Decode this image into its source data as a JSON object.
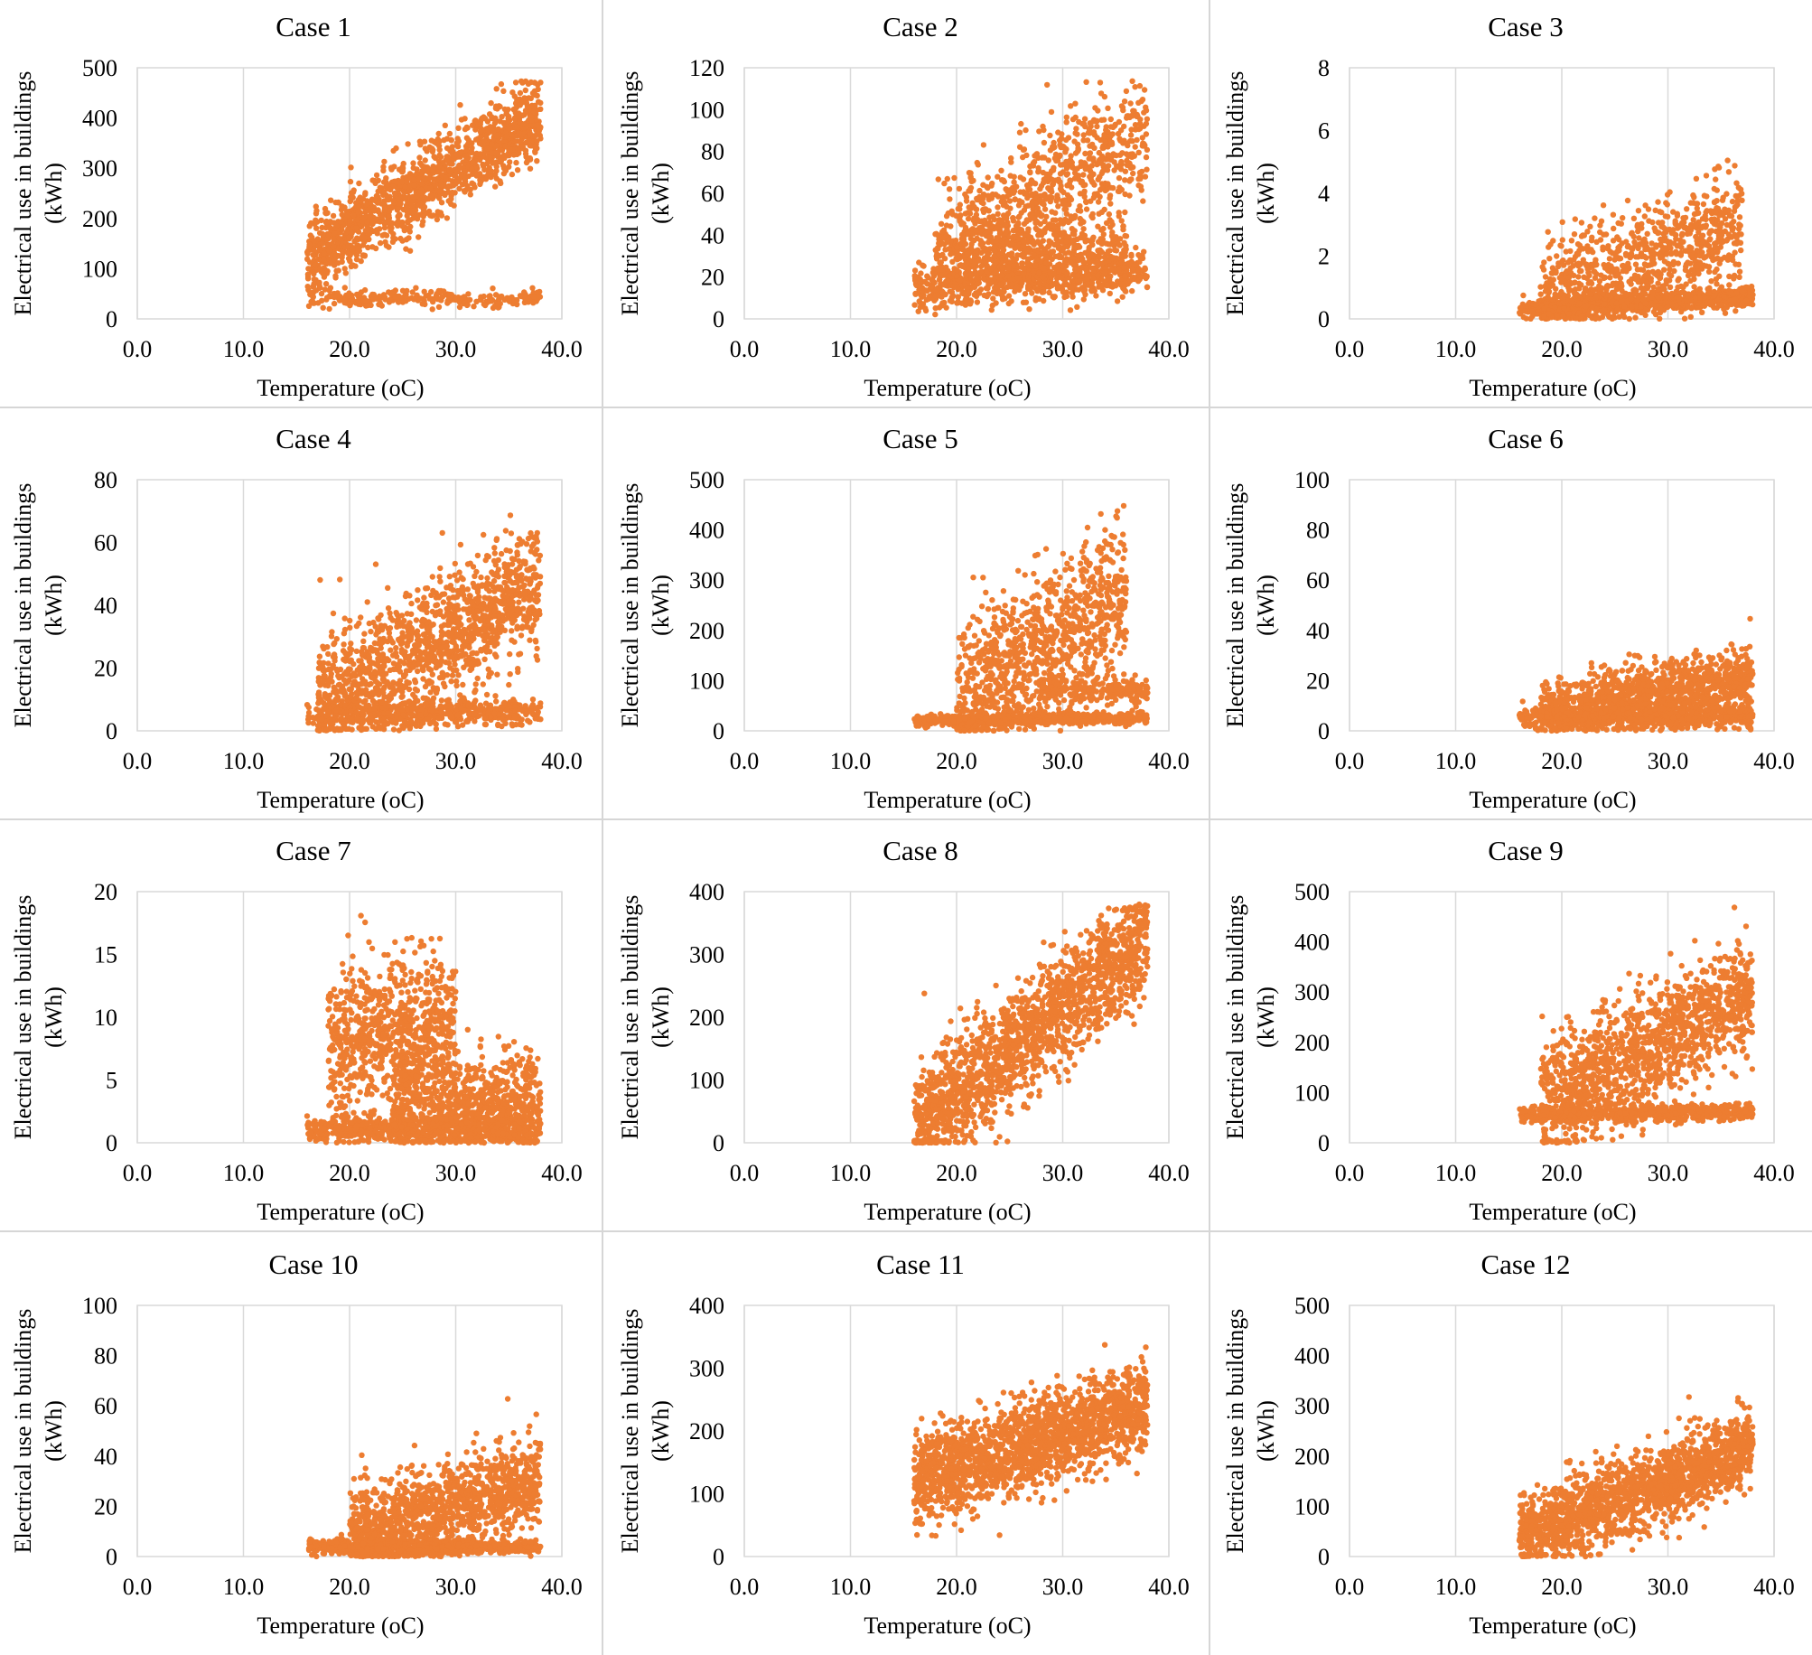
{
  "figure": {
    "xlabel": "Temperature (oC)",
    "ylabel_line1": "Electrical use in buildings",
    "ylabel_line2": "(kWh)",
    "point_color": "#ED7D31",
    "grid_color": "#D9D9D9",
    "x_ticks": [
      "0.0",
      "10.0",
      "20.0",
      "30.0",
      "40.0"
    ]
  },
  "chart_data": [
    {
      "type": "scatter",
      "title": "Case 1",
      "xlabel": "Temperature (oC)",
      "ylabel": "Electrical use in buildings (kWh)",
      "xlim": [
        0,
        40
      ],
      "ylim": [
        0,
        500
      ],
      "y_ticks": [
        "0",
        "100",
        "200",
        "300",
        "400",
        "500"
      ],
      "clusters": [
        {
          "x": [
            16,
            38
          ],
          "y0": 40,
          "slope": 0,
          "spread": 8,
          "n": 260
        },
        {
          "x": [
            16,
            38
          ],
          "y0": 120,
          "slope": 13,
          "spread": 40,
          "n": 1400
        }
      ]
    },
    {
      "type": "scatter",
      "title": "Case 2",
      "xlabel": "Temperature (oC)",
      "ylabel": "Electrical use in buildings (kWh)",
      "xlim": [
        0,
        40
      ],
      "ylim": [
        0,
        120
      ],
      "y_ticks": [
        "0",
        "20",
        "40",
        "60",
        "80",
        "100",
        "120"
      ],
      "clusters": [
        {
          "x": [
            16,
            38
          ],
          "y0": 15,
          "slope": 0.4,
          "spread": 5,
          "n": 700
        },
        {
          "x": [
            18,
            38
          ],
          "y0": 30,
          "slope": 3.0,
          "spread": 15,
          "n": 900
        },
        {
          "x": [
            20,
            36
          ],
          "y0": 30,
          "slope": 0.2,
          "spread": 10,
          "n": 500
        }
      ]
    },
    {
      "type": "scatter",
      "title": "Case 3",
      "xlabel": "Temperature (oC)",
      "ylabel": "Electrical use in buildings (kWh)",
      "xlim": [
        0,
        40
      ],
      "ylim": [
        0,
        8
      ],
      "y_ticks": [
        "0",
        "2",
        "4",
        "6",
        "8"
      ],
      "clusters": [
        {
          "x": [
            16,
            38
          ],
          "y0": 0.3,
          "slope": 0.02,
          "spread": 0.15,
          "n": 900
        },
        {
          "x": [
            18,
            37
          ],
          "y0": 0.6,
          "slope": 0.12,
          "spread": 0.9,
          "n": 900
        }
      ]
    },
    {
      "type": "scatter",
      "title": "Case 4",
      "xlabel": "Temperature (oC)",
      "ylabel": "Electrical use in buildings (kWh)",
      "xlim": [
        0,
        40
      ],
      "ylim": [
        0,
        80
      ],
      "y_ticks": [
        "0",
        "20",
        "40",
        "60",
        "80"
      ],
      "clusters": [
        {
          "x": [
            16,
            38
          ],
          "y0": 5,
          "slope": 0.05,
          "spread": 2,
          "n": 500
        },
        {
          "x": [
            17,
            38
          ],
          "y0": 10,
          "slope": 1.7,
          "spread": 10,
          "n": 1300
        }
      ]
    },
    {
      "type": "scatter",
      "title": "Case 5",
      "xlabel": "Temperature (oC)",
      "ylabel": "Electrical use in buildings (kWh)",
      "xlim": [
        0,
        40
      ],
      "ylim": [
        0,
        500
      ],
      "y_ticks": [
        "0",
        "100",
        "200",
        "300",
        "400",
        "500"
      ],
      "clusters": [
        {
          "x": [
            16,
            38
          ],
          "y0": 20,
          "slope": 0.3,
          "spread": 6,
          "n": 700
        },
        {
          "x": [
            20,
            36
          ],
          "y0": 60,
          "slope": 14,
          "spread": 70,
          "n": 1000
        },
        {
          "x": [
            28,
            38
          ],
          "y0": 80,
          "slope": 0,
          "spread": 12,
          "n": 200
        }
      ]
    },
    {
      "type": "scatter",
      "title": "Case 6",
      "xlabel": "Temperature (oC)",
      "ylabel": "Electrical use in buildings (kWh)",
      "xlim": [
        0,
        40
      ],
      "ylim": [
        0,
        100
      ],
      "y_ticks": [
        "0",
        "20",
        "40",
        "60",
        "80",
        "100"
      ],
      "clusters": [
        {
          "x": [
            16,
            38
          ],
          "y0": 5,
          "slope": 0.05,
          "spread": 2,
          "n": 700
        },
        {
          "x": [
            18,
            38
          ],
          "y0": 8,
          "slope": 0.6,
          "spread": 6,
          "n": 1200
        }
      ]
    },
    {
      "type": "scatter",
      "title": "Case 7",
      "xlabel": "Temperature (oC)",
      "ylabel": "Electrical use in buildings (kWh)",
      "xlim": [
        0,
        40
      ],
      "ylim": [
        0,
        20
      ],
      "y_ticks": [
        "0",
        "5",
        "10",
        "15",
        "20"
      ],
      "clusters": [
        {
          "x": [
            16,
            38
          ],
          "y0": 1.0,
          "slope": 0,
          "spread": 0.5,
          "n": 600
        },
        {
          "x": [
            18,
            30
          ],
          "y0": 8,
          "slope": 0.1,
          "spread": 3.0,
          "n": 800
        },
        {
          "x": [
            24,
            38
          ],
          "y0": 3,
          "slope": 0,
          "spread": 2.0,
          "n": 800
        }
      ]
    },
    {
      "type": "scatter",
      "title": "Case 8",
      "xlabel": "Temperature (oC)",
      "ylabel": "Electrical use in buildings (kWh)",
      "xlim": [
        0,
        40
      ],
      "ylim": [
        0,
        400
      ],
      "y_ticks": [
        "0",
        "100",
        "200",
        "300",
        "400"
      ],
      "clusters": [
        {
          "x": [
            16,
            38
          ],
          "y0": 20,
          "slope": 14,
          "spread": 45,
          "n": 1700
        }
      ]
    },
    {
      "type": "scatter",
      "title": "Case 9",
      "xlabel": "Temperature (oC)",
      "ylabel": "Electrical use in buildings (kWh)",
      "xlim": [
        0,
        40
      ],
      "ylim": [
        0,
        500
      ],
      "y_ticks": [
        "0",
        "100",
        "200",
        "300",
        "400",
        "500"
      ],
      "clusters": [
        {
          "x": [
            16,
            38
          ],
          "y0": 55,
          "slope": 0.3,
          "spread": 8,
          "n": 600
        },
        {
          "x": [
            18,
            38
          ],
          "y0": 80,
          "slope": 11,
          "spread": 60,
          "n": 1300
        }
      ]
    },
    {
      "type": "scatter",
      "title": "Case 10",
      "xlabel": "Temperature (oC)",
      "ylabel": "Electrical use in buildings (kWh)",
      "xlim": [
        0,
        40
      ],
      "ylim": [
        0,
        100
      ],
      "y_ticks": [
        "0",
        "20",
        "40",
        "60",
        "80",
        "100"
      ],
      "clusters": [
        {
          "x": [
            16,
            38
          ],
          "y0": 4,
          "slope": 0,
          "spread": 1.5,
          "n": 700
        },
        {
          "x": [
            20,
            38
          ],
          "y0": 8,
          "slope": 1.3,
          "spread": 9,
          "n": 1200
        }
      ]
    },
    {
      "type": "scatter",
      "title": "Case 11",
      "xlabel": "Temperature (oC)",
      "ylabel": "Electrical use in buildings (kWh)",
      "xlim": [
        0,
        40
      ],
      "ylim": [
        0,
        400
      ],
      "y_ticks": [
        "0",
        "100",
        "200",
        "300",
        "400"
      ],
      "clusters": [
        {
          "x": [
            16,
            38
          ],
          "y0": 120,
          "slope": 5.5,
          "spread": 35,
          "n": 1800
        }
      ]
    },
    {
      "type": "scatter",
      "title": "Case 12",
      "xlabel": "Temperature (oC)",
      "ylabel": "Electrical use in buildings (kWh)",
      "xlim": [
        0,
        40
      ],
      "ylim": [
        0,
        500
      ],
      "y_ticks": [
        "0",
        "100",
        "200",
        "300",
        "400",
        "500"
      ],
      "clusters": [
        {
          "x": [
            16,
            38
          ],
          "y0": 40,
          "slope": 8,
          "spread": 40,
          "n": 1700
        }
      ]
    }
  ]
}
